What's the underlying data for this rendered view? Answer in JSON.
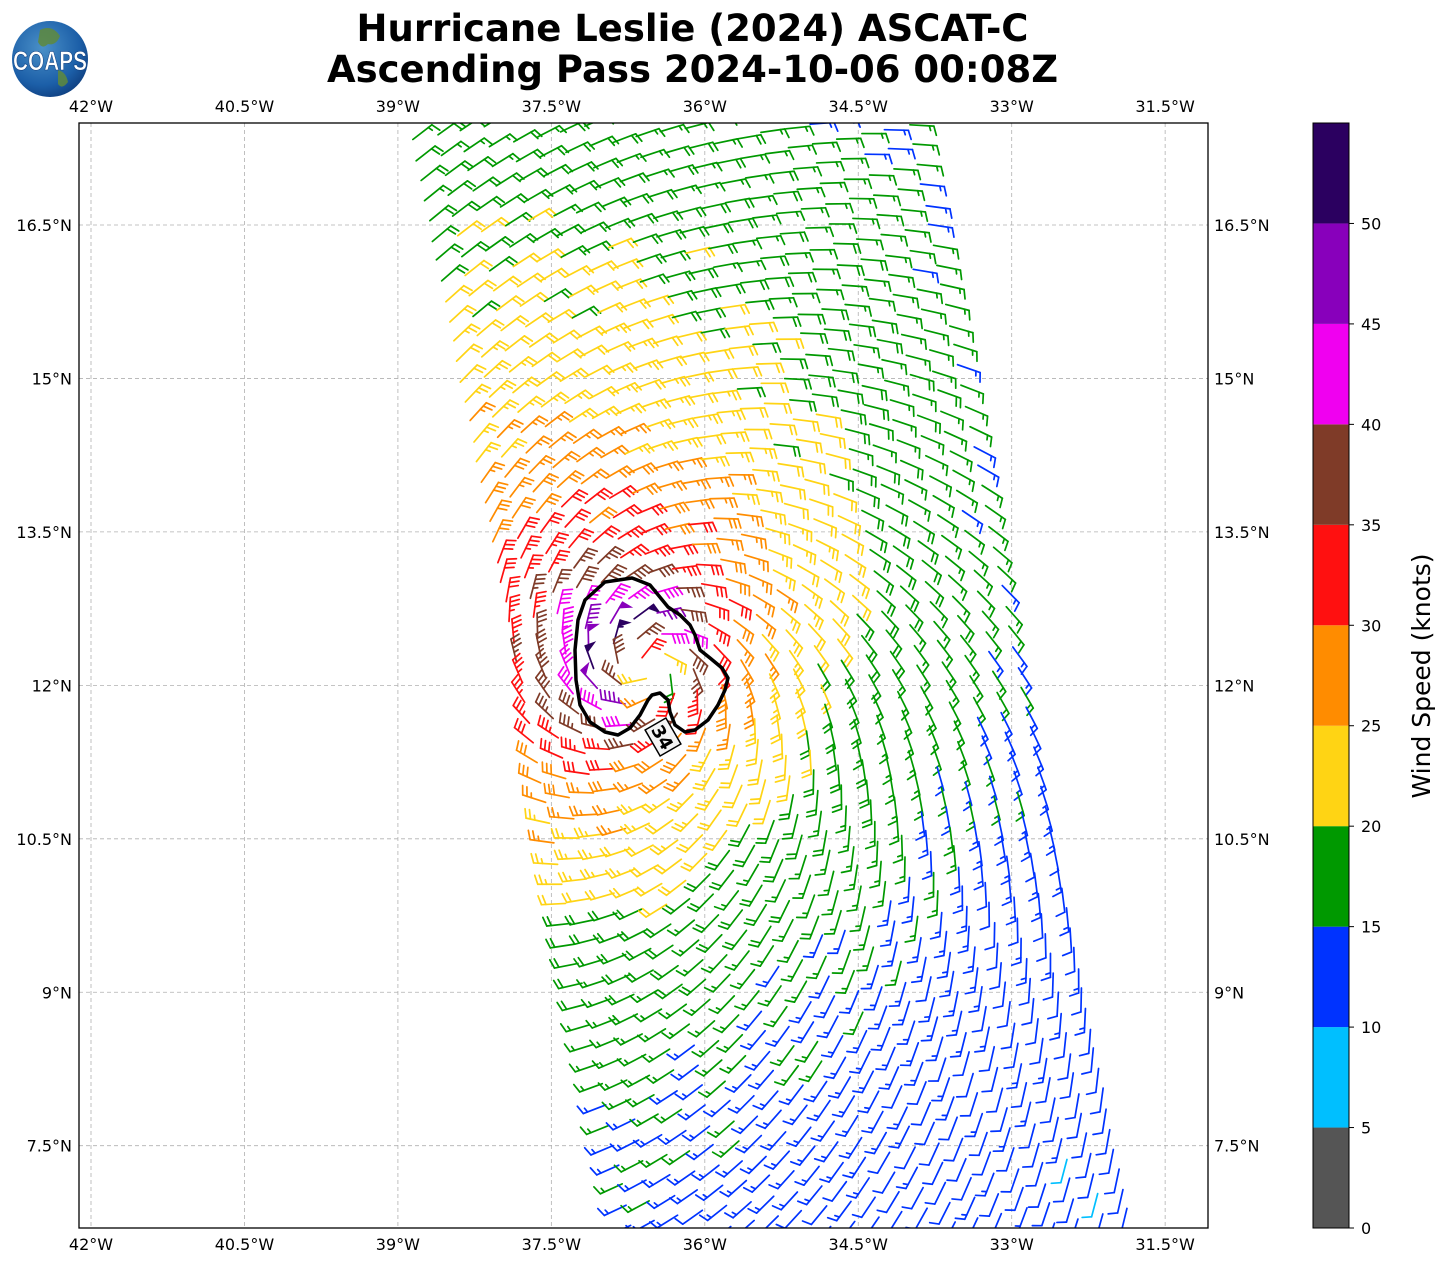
{
  "header": {
    "title_line1": "Hurricane Leslie (2024) ASCAT-C",
    "title_line2": "Ascending Pass 2024-10-06 00:08Z",
    "logo_text": "COAPS"
  },
  "chart_data": {
    "type": "wind-barb-map",
    "title": "Hurricane Leslie (2024) ASCAT-C Ascending Pass 2024-10-06 00:08Z",
    "lon_ticks": [
      "42°W",
      "40.5°W",
      "39°W",
      "37.5°W",
      "36°W",
      "34.5°W",
      "33°W",
      "31.5°W"
    ],
    "lon_values": [
      -42,
      -40.5,
      -39,
      -37.5,
      -36,
      -34.5,
      -33,
      -31.5
    ],
    "lat_ticks": [
      "16.5°N",
      "15°N",
      "13.5°N",
      "12°N",
      "10.5°N",
      "9°N",
      "7.5°N"
    ],
    "lat_values": [
      16.5,
      15,
      13.5,
      12,
      10.5,
      9,
      7.5
    ],
    "grid": true,
    "contour_label": "34",
    "colorbar": {
      "label": "Wind Speed (knots)",
      "ticks": [
        "0",
        "5",
        "10",
        "15",
        "20",
        "25",
        "30",
        "35",
        "40",
        "45",
        "50"
      ],
      "range": [
        0,
        55
      ],
      "bins": [
        {
          "min": 0,
          "max": 5,
          "color": "#555555"
        },
        {
          "min": 5,
          "max": 10,
          "color": "#00bfff"
        },
        {
          "min": 10,
          "max": 15,
          "color": "#0033ff"
        },
        {
          "min": 15,
          "max": 20,
          "color": "#009900"
        },
        {
          "min": 20,
          "max": 25,
          "color": "#ffd414"
        },
        {
          "min": 25,
          "max": 30,
          "color": "#ff8c00"
        },
        {
          "min": 30,
          "max": 35,
          "color": "#ff1010"
        },
        {
          "min": 35,
          "max": 40,
          "color": "#7f3b28"
        },
        {
          "min": 40,
          "max": 45,
          "color": "#f000f0"
        },
        {
          "min": 45,
          "max": 50,
          "color": "#8800bb"
        },
        {
          "min": 50,
          "max": 55,
          "color": "#2b0060"
        }
      ]
    }
  }
}
